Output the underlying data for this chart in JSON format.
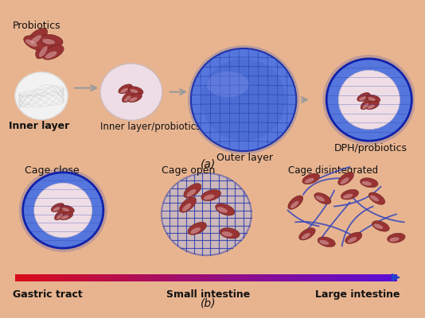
{
  "bg_color": "#e8b490",
  "title_a": "(a)",
  "title_b": "(b)",
  "labels_top": [
    "Probiotics",
    "Inner layer/probiotics",
    "Outer layer",
    "DPH/probiotics",
    "Inner layer"
  ],
  "labels_bottom_state": [
    "Cage close",
    "Cage open",
    "Cage disintegrated"
  ],
  "labels_bottom_location": [
    "Gastric tract",
    "Small intestine",
    "Large intestine"
  ],
  "arrow_color": "#999999",
  "text_color": "#111111",
  "font_size_label": 8.5,
  "font_size_title": 9,
  "blue_dark": "#2233aa",
  "blue_main": "#4466cc",
  "blue_light": "#8899dd",
  "bacteria_dark": "#993333",
  "bacteria_mid": "#bb5555",
  "bacteria_light": "#ddaaaa",
  "inner_fill": "#e8d0d8",
  "white_sphere": "#f2f2f2"
}
